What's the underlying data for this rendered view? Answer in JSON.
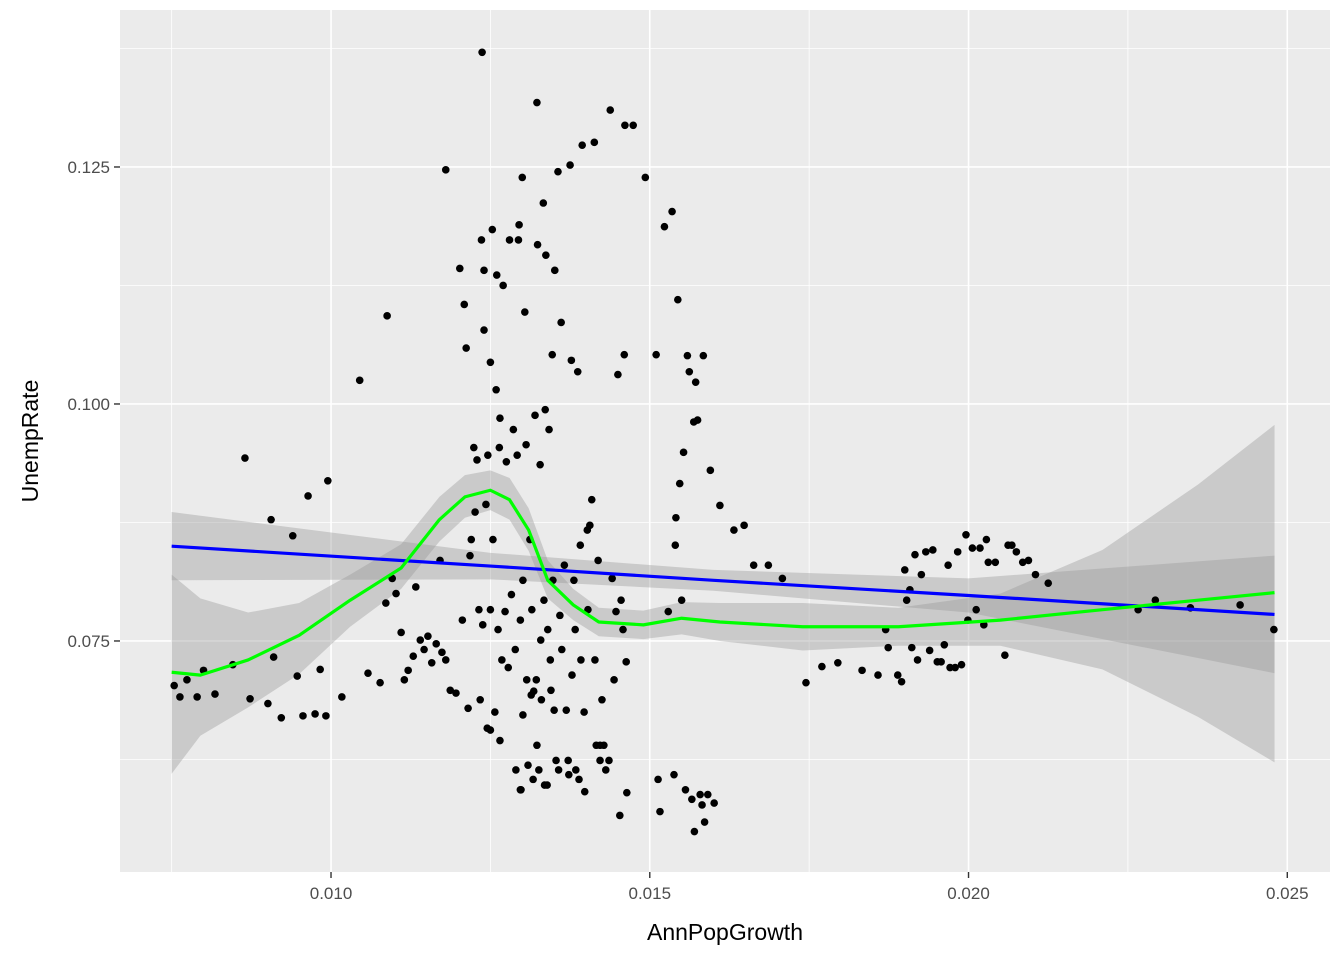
{
  "chart_data": {
    "type": "scatter",
    "x_label": "AnnPopGrowth",
    "y_label": "UnempRate",
    "xlim": [
      0.00669,
      0.02567
    ],
    "ylim": [
      0.05063,
      0.14156
    ],
    "xticks": [
      {
        "value": 0.01,
        "label": "0.010"
      },
      {
        "value": 0.015,
        "label": "0.015"
      },
      {
        "value": 0.02,
        "label": "0.020"
      },
      {
        "value": 0.025,
        "label": "0.025"
      }
    ],
    "yticks": [
      {
        "value": 0.075,
        "label": "0.075"
      },
      {
        "value": 0.1,
        "label": "0.100"
      },
      {
        "value": 0.125,
        "label": "0.125"
      }
    ],
    "xminorticks": [
      0.0075,
      0.0125,
      0.0175,
      0.0225
    ],
    "yminorticks": [
      0.0625,
      0.0875,
      0.1125,
      0.1375
    ],
    "grid": true,
    "color": "#000000",
    "x": [
      0.00754,
      0.00763,
      0.00774,
      0.0079,
      0.008,
      0.00818,
      0.00846,
      0.00865,
      0.00873,
      0.00901,
      0.00906,
      0.0091,
      0.00922,
      0.0094,
      0.00947,
      0.00956,
      0.00964,
      0.00975,
      0.00983,
      0.00992,
      0.00995,
      0.01017,
      0.01045,
      0.01058,
      0.01077,
      0.01088,
      0.01086,
      0.01096,
      0.01102,
      0.0111,
      0.01115,
      0.01121,
      0.01129,
      0.01133,
      0.0114,
      0.01146,
      0.01152,
      0.01158,
      0.01165,
      0.01171,
      0.01174,
      0.0118,
      0.0118,
      0.01187,
      0.01196,
      0.01202,
      0.01206,
      0.01209,
      0.01212,
      0.01215,
      0.01218,
      0.0122,
      0.01224,
      0.01226,
      0.01229,
      0.01232,
      0.01234,
      0.01236,
      0.01237,
      0.01238,
      0.0124,
      0.0124,
      0.01243,
      0.01245,
      0.01246,
      0.0125,
      0.0125,
      0.01253,
      0.01254,
      0.01257,
      0.01259,
      0.0126,
      0.01262,
      0.01264,
      0.01265,
      0.01268,
      0.0127,
      0.01273,
      0.01275,
      0.01278,
      0.0128,
      0.01283,
      0.01286,
      0.01289,
      0.0129,
      0.01292,
      0.01294,
      0.01295,
      0.01297,
      0.01297,
      0.013,
      0.01301,
      0.01301,
      0.01304,
      0.01306,
      0.01307,
      0.01309,
      0.01312,
      0.01314,
      0.01315,
      0.01317,
      0.01318,
      0.0132,
      0.01322,
      0.01323,
      0.01323,
      0.01324,
      0.01328,
      0.01329,
      0.0133,
      0.01333,
      0.01334,
      0.01336,
      0.01337,
      0.01339,
      0.0134,
      0.01342,
      0.01344,
      0.01345,
      0.01347,
      0.01348,
      0.0135,
      0.01351,
      0.01353,
      0.01356,
      0.01359,
      0.01361,
      0.01362,
      0.01366,
      0.01369,
      0.01372,
      0.01375,
      0.01377,
      0.01378,
      0.01381,
      0.01383,
      0.01384,
      0.01387,
      0.01391,
      0.01392,
      0.01394,
      0.01397,
      0.01398,
      0.01402,
      0.01403,
      0.01406,
      0.01409,
      0.01413,
      0.01414,
      0.01416,
      0.01419,
      0.01422,
      0.01425,
      0.01428,
      0.01431,
      0.01438,
      0.01441,
      0.01444,
      0.01447,
      0.0145,
      0.01453,
      0.01455,
      0.01458,
      0.0146,
      0.01461,
      0.01463,
      0.01464,
      0.01474,
      0.01493,
      0.0151,
      0.01513,
      0.01516,
      0.01523,
      0.01529,
      0.01535,
      0.01538,
      0.0154,
      0.01541,
      0.01544,
      0.01547,
      0.0155,
      0.01553,
      0.01556,
      0.01559,
      0.01562,
      0.01566,
      0.01569,
      0.0157,
      0.01572,
      0.01575,
      0.01579,
      0.01582,
      0.01584,
      0.01586,
      0.01591,
      0.01595,
      0.01601,
      0.0161,
      0.01632,
      0.01648,
      0.01663,
      0.01686,
      0.01708,
      0.01745,
      0.0177,
      0.01795,
      0.01833,
      0.01858,
      0.0187,
      0.01874,
      0.01889,
      0.01895,
      0.019,
      0.01903,
      0.01908,
      0.01911,
      0.01916,
      0.0192,
      0.01926,
      0.01933,
      0.01939,
      0.01944,
      0.01951,
      0.01957,
      0.01962,
      0.01968,
      0.01971,
      0.01979,
      0.01983,
      0.01989,
      0.01996,
      0.01999,
      0.02006,
      0.02012,
      0.02018,
      0.02024,
      0.02028,
      0.02031,
      0.02042,
      0.02057,
      0.02062,
      0.02068,
      0.02075,
      0.02085,
      0.02094,
      0.02105,
      0.02125,
      0.02266,
      0.02293,
      0.02348,
      0.02426,
      0.02479,
      0.0125,
      0.01265,
      0.01298,
      0.01326,
      0.01357,
      0.01373,
      0.01389,
      0.01436,
      0.01422,
      0.01335
    ],
    "values": [
      0.0703,
      0.0691,
      0.0709,
      0.0691,
      0.0719,
      0.0694,
      0.0725,
      0.0943,
      0.0689,
      0.0684,
      0.0878,
      0.0733,
      0.0669,
      0.0861,
      0.0713,
      0.0671,
      0.0903,
      0.0673,
      0.072,
      0.0671,
      0.0919,
      0.0691,
      0.1025,
      0.0716,
      0.0706,
      0.1093,
      0.079,
      0.0816,
      0.08,
      0.0759,
      0.0709,
      0.0719,
      0.0734,
      0.0807,
      0.0751,
      0.0741,
      0.0755,
      0.0727,
      0.0747,
      0.0835,
      0.0738,
      0.1247,
      0.073,
      0.0698,
      0.0695,
      0.1143,
      0.0772,
      0.1105,
      0.1059,
      0.0679,
      0.084,
      0.0857,
      0.0954,
      0.0886,
      0.0941,
      0.0783,
      0.0688,
      0.1173,
      0.1371,
      0.0767,
      0.1078,
      0.1141,
      0.0894,
      0.0658,
      0.0946,
      0.0783,
      0.1044,
      0.1184,
      0.0857,
      0.0675,
      0.1015,
      0.1136,
      0.0762,
      0.0954,
      0.0985,
      0.073,
      0.1125,
      0.0781,
      0.0939,
      0.0722,
      0.1173,
      0.0799,
      0.0973,
      0.0741,
      0.0614,
      0.0946,
      0.1173,
      0.1189,
      0.0772,
      0.0593,
      0.1239,
      0.0814,
      0.0672,
      0.1097,
      0.0957,
      0.0709,
      0.0619,
      0.0857,
      0.0693,
      0.0783,
      0.0604,
      0.0697,
      0.0988,
      0.0709,
      0.1318,
      0.064,
      0.1168,
      0.0936,
      0.0751,
      0.0688,
      0.1212,
      0.0793,
      0.0994,
      0.1157,
      0.0598,
      0.0762,
      0.0973,
      0.073,
      0.0698,
      0.1052,
      0.0814,
      0.0677,
      0.1141,
      0.0624,
      0.1245,
      0.0777,
      0.1086,
      0.0741,
      0.083,
      0.0677,
      0.0624,
      0.1252,
      0.1046,
      0.0714,
      0.0814,
      0.0762,
      0.0614,
      0.1034,
      0.0851,
      0.073,
      0.1273,
      0.0675,
      0.0591,
      0.0867,
      0.0783,
      0.0872,
      0.0899,
      0.1276,
      0.073,
      0.064,
      0.0835,
      0.0624,
      0.0688,
      0.064,
      0.0614,
      0.131,
      0.0816,
      0.0709,
      0.0781,
      0.1031,
      0.0566,
      0.0793,
      0.0762,
      0.1052,
      0.1294,
      0.0728,
      0.059,
      0.1294,
      0.1239,
      0.1052,
      0.0604,
      0.057,
      0.1187,
      0.0781,
      0.1203,
      0.0609,
      0.0851,
      0.088,
      0.111,
      0.0916,
      0.0793,
      0.0949,
      0.0593,
      0.1051,
      0.1034,
      0.0583,
      0.0981,
      0.0549,
      0.1023,
      0.0983,
      0.0588,
      0.0577,
      0.1051,
      0.0559,
      0.0588,
      0.093,
      0.0579,
      0.0893,
      0.0867,
      0.0872,
      0.083,
      0.083,
      0.0816,
      0.0706,
      0.0723,
      0.0727,
      0.0719,
      0.0714,
      0.0762,
      0.0743,
      0.0714,
      0.0707,
      0.0825,
      0.0793,
      0.0804,
      0.0743,
      0.0841,
      0.073,
      0.082,
      0.0844,
      0.074,
      0.0846,
      0.0728,
      0.0728,
      0.0746,
      0.083,
      0.0722,
      0.0722,
      0.0844,
      0.0725,
      0.0862,
      0.0772,
      0.0848,
      0.0783,
      0.0848,
      0.0767,
      0.0857,
      0.0833,
      0.0833,
      0.0735,
      0.0851,
      0.0851,
      0.0844,
      0.0833,
      0.0835,
      0.082,
      0.0811,
      0.0783,
      0.0793,
      0.0785,
      0.0788,
      0.0762,
      0.0656,
      0.0645,
      0.0593,
      0.0614,
      0.0614,
      0.0609,
      0.0604,
      0.0624,
      0.064,
      0.0598
    ],
    "smooths": [
      {
        "color": "#0000ff",
        "band": "#999999",
        "x": [
          0.0075,
          0.0125,
          0.016,
          0.02,
          0.0248
        ],
        "values": [
          0.085,
          0.0829,
          0.0814,
          0.0798,
          0.0778
        ],
        "lower": [
          0.0814,
          0.0815,
          0.0803,
          0.078,
          0.0716
        ],
        "upper": [
          0.0886,
          0.0843,
          0.0825,
          0.0816,
          0.084
        ]
      },
      {
        "color": "#00ff00",
        "band": "#999999",
        "x": [
          0.0075,
          0.00795,
          0.0087,
          0.0095,
          0.0103,
          0.0111,
          0.0117,
          0.0121,
          0.0125,
          0.0128,
          0.0131,
          0.0134,
          0.0138,
          0.0142,
          0.0149,
          0.0155,
          0.0161,
          0.0174,
          0.0189,
          0.0205,
          0.0221,
          0.0236,
          0.0248
        ],
        "values": [
          0.0717,
          0.0714,
          0.073,
          0.0756,
          0.0793,
          0.0827,
          0.0878,
          0.0902,
          0.0909,
          0.0899,
          0.0867,
          0.0814,
          0.0788,
          0.077,
          0.0767,
          0.0774,
          0.077,
          0.0765,
          0.0765,
          0.0772,
          0.0783,
          0.0793,
          0.0801
        ],
        "lower": [
          0.061,
          0.065,
          0.068,
          0.0715,
          0.0765,
          0.0805,
          0.0855,
          0.088,
          0.0888,
          0.0878,
          0.0845,
          0.0795,
          0.0772,
          0.0755,
          0.0752,
          0.0757,
          0.075,
          0.074,
          0.0745,
          0.0745,
          0.072,
          0.067,
          0.0622
        ],
        "upper": [
          0.082,
          0.0795,
          0.078,
          0.079,
          0.082,
          0.0852,
          0.0902,
          0.0925,
          0.093,
          0.0922,
          0.089,
          0.0835,
          0.0805,
          0.0785,
          0.0782,
          0.0791,
          0.079,
          0.079,
          0.0785,
          0.08,
          0.0846,
          0.0915,
          0.0978
        ]
      }
    ]
  }
}
